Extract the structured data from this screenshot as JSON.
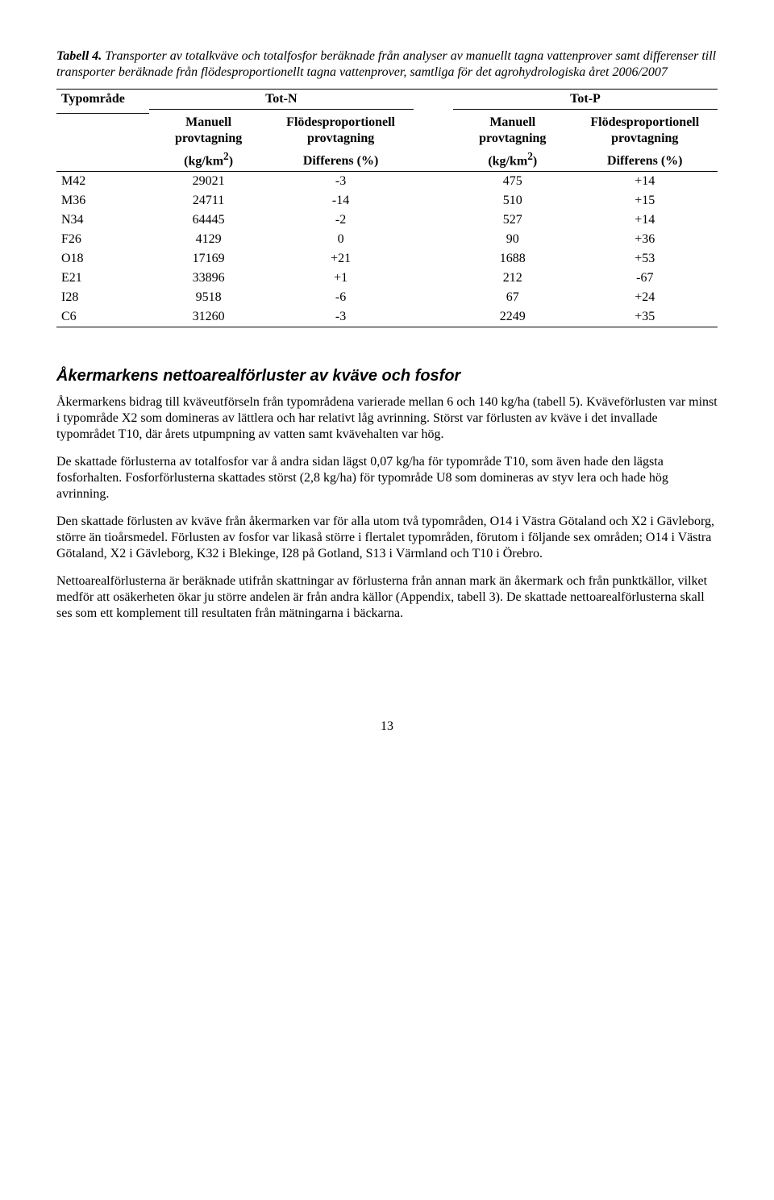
{
  "caption": {
    "label": "Tabell 4.",
    "text": "Transporter av totalkväve och totalfosfor beräknade från analyser av manuellt tagna vattenprover samt differenser till transporter beräknade från flödesproportionellt tagna vattenprover, samtliga för det agrohydrologiska året 2006/2007"
  },
  "table": {
    "col_typ": "Typområde",
    "group_totN": "Tot-N",
    "group_totP": "Tot-P",
    "sub_manuell_line1": "Manuell",
    "sub_manuell_line2": "provtagning",
    "sub_flodes_line1": "Flödesproportionell",
    "sub_flodes_line2": "provtagning",
    "unit_kg": "(kg/km",
    "unit_kg_sup": "2",
    "unit_kg_close": ")",
    "unit_diff": "Differens (%)",
    "rows": [
      {
        "id": "M42",
        "n_kg": "29021",
        "n_diff": "-3",
        "p_kg": "475",
        "p_diff": "+14"
      },
      {
        "id": "M36",
        "n_kg": "24711",
        "n_diff": "-14",
        "p_kg": "510",
        "p_diff": "+15"
      },
      {
        "id": "N34",
        "n_kg": "64445",
        "n_diff": "-2",
        "p_kg": "527",
        "p_diff": "+14"
      },
      {
        "id": "F26",
        "n_kg": "4129",
        "n_diff": "0",
        "p_kg": "90",
        "p_diff": "+36"
      },
      {
        "id": "O18",
        "n_kg": "17169",
        "n_diff": "+21",
        "p_kg": "1688",
        "p_diff": "+53"
      },
      {
        "id": "E21",
        "n_kg": "33896",
        "n_diff": "+1",
        "p_kg": "212",
        "p_diff": "-67"
      },
      {
        "id": "I28",
        "n_kg": "9518",
        "n_diff": "-6",
        "p_kg": "67",
        "p_diff": "+24"
      },
      {
        "id": "C6",
        "n_kg": "31260",
        "n_diff": "-3",
        "p_kg": "2249",
        "p_diff": "+35"
      }
    ]
  },
  "section_title": "Åkermarkens nettoarealförluster av kväve och fosfor",
  "paragraphs": {
    "p1": "Åkermarkens bidrag till kväveutförseln från typområdena varierade mellan 6 och 140 kg/ha (tabell 5). Kväveförlusten var minst i typområde X2 som domineras av lättlera och har relativt låg avrinning. Störst var förlusten av kväve i det invallade typområdet T10, där årets utpumpning av vatten samt kvävehalten var hög.",
    "p2": "De skattade förlusterna av totalfosfor var å andra sidan lägst 0,07 kg/ha för typområde T10, som även hade den lägsta fosforhalten. Fosforförlusterna skattades störst (2,8 kg/ha) för typområde U8 som domineras av styv lera och hade hög avrinning.",
    "p3": "Den skattade förlusten av kväve från åkermarken var för alla utom två typområden, O14 i Västra Götaland och X2 i Gävleborg, större än tioårsmedel. Förlusten av fosfor var likaså större i flertalet typområden, förutom i följande sex områden; O14 i Västra Götaland, X2 i Gävleborg, K32 i Blekinge, I28 på Gotland, S13 i Värmland och T10 i Örebro.",
    "p4": "Nettoarealförlusterna är beräknade utifrån skattningar av förlusterna från annan mark än åkermark och från punktkällor, vilket medför att osäkerheten ökar ju större andelen är från andra källor (Appendix, tabell 3). De skattade nettoarealförlusterna skall ses som ett komplement till resultaten från mätningarna i bäckarna."
  },
  "page_number": "13"
}
